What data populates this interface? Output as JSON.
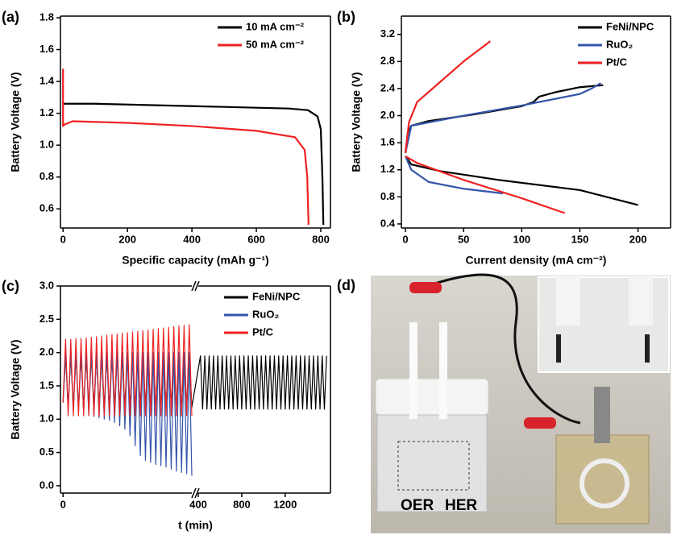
{
  "chart_data": [
    {
      "type": "line",
      "panel_label": "(a)",
      "xlabel": "Specific capacity (mAh g⁻¹)",
      "ylabel": "Battery Voltage (V)",
      "xlim": [
        -8,
        830
      ],
      "ylim": [
        0.48,
        1.81
      ],
      "xticks": [
        0,
        200,
        400,
        600,
        800
      ],
      "yticks": [
        0.6,
        0.8,
        {
          "value": 1.0,
          "label": "1.0"
        },
        1.2,
        1.4,
        1.6,
        1.8
      ],
      "legend": "upper right",
      "series": [
        {
          "name": "10 mA cm⁻²",
          "color": "#000000",
          "x": [
            0,
            100,
            300,
            500,
            700,
            760,
            790,
            800,
            805,
            808
          ],
          "values": [
            1.26,
            1.26,
            1.25,
            1.24,
            1.23,
            1.22,
            1.18,
            1.1,
            0.8,
            0.5
          ]
        },
        {
          "name": "50 mA cm⁻²",
          "color": "#ee2222",
          "x": [
            0,
            0,
            5,
            30,
            200,
            400,
            600,
            720,
            750,
            758,
            762
          ],
          "values": [
            1.48,
            1.12,
            1.13,
            1.15,
            1.14,
            1.12,
            1.09,
            1.05,
            0.97,
            0.8,
            0.5
          ]
        }
      ]
    },
    {
      "type": "line",
      "panel_label": "(b)",
      "xlabel": "Current density (mA cm⁻²)",
      "ylabel": "Battery Voltage (V)",
      "xlim": [
        -3.5,
        228
      ],
      "ylim": [
        0.34,
        3.47
      ],
      "xticks": [
        0,
        50,
        100,
        150,
        200
      ],
      "yticks": [
        0.4,
        0.8,
        1.2,
        1.6,
        {
          "value": 2.0,
          "label": "2.0"
        },
        2.4,
        2.8,
        3.2
      ],
      "legend": "upper right",
      "series": [
        {
          "name": "FeNi/NPC",
          "color": "#000000",
          "x": [
            0,
            2,
            5,
            20,
            60,
            100,
            110,
            115,
            130,
            150,
            170,
            null,
            0,
            5,
            30,
            80,
            150,
            200
          ],
          "values": [
            1.45,
            1.75,
            1.85,
            1.92,
            2.02,
            2.14,
            2.2,
            2.28,
            2.35,
            2.42,
            2.45,
            null,
            1.4,
            1.28,
            1.18,
            1.05,
            0.9,
            0.68
          ]
        },
        {
          "name": "RuO₂",
          "color": "#3355aa",
          "x": [
            0,
            5,
            50,
            100,
            150,
            160,
            168,
            null,
            0,
            5,
            20,
            50,
            84
          ],
          "values": [
            1.45,
            1.85,
            2.0,
            2.15,
            2.32,
            2.4,
            2.48,
            null,
            1.4,
            1.2,
            1.02,
            0.92,
            0.85
          ]
        },
        {
          "name": "Pt/C",
          "color": "#ee2222",
          "x": [
            0,
            3,
            10,
            30,
            50,
            73,
            null,
            0,
            10,
            50,
            100,
            137
          ],
          "values": [
            1.45,
            1.9,
            2.2,
            2.5,
            2.8,
            3.1,
            null,
            1.4,
            1.3,
            1.05,
            0.78,
            0.56
          ]
        }
      ]
    },
    {
      "type": "line",
      "panel_label": "(c)",
      "xlabel": "t (min)",
      "ylabel": "Battery Voltage (V)",
      "xsegments": [
        [
          -8,
          400
        ],
        [
          400,
          1616
        ]
      ],
      "ylim": [
        -0.11,
        3.0
      ],
      "xticks": [
        0,
        400,
        800,
        1200
      ],
      "yticks": [
        {
          "value": 0,
          "label": "0.0"
        },
        0.5,
        {
          "value": 1,
          "label": "1.0"
        },
        1.5,
        {
          "value": 2,
          "label": "2.0"
        },
        2.5,
        {
          "value": 3,
          "label": "3.0"
        }
      ],
      "legend": "upper right",
      "series": [
        {
          "name": "FeNi/NPC",
          "color": "#000000",
          "x": [
            0,
            8,
            16,
            24,
            32,
            40,
            48,
            56,
            64,
            72,
            80,
            88,
            96,
            104,
            112,
            120,
            128,
            136,
            144,
            152,
            160,
            168,
            176,
            184,
            192,
            200,
            208,
            216,
            224,
            232,
            240,
            248,
            256,
            264,
            272,
            280,
            288,
            296,
            304,
            312,
            320,
            328,
            336,
            344,
            352,
            360,
            368,
            376,
            384,
            392,
            400,
            420,
            440,
            460,
            480,
            500,
            520,
            540,
            560,
            580,
            600,
            620,
            640,
            660,
            680,
            700,
            720,
            740,
            760,
            780,
            800,
            820,
            840,
            860,
            880,
            900,
            920,
            940,
            960,
            980,
            1000,
            1020,
            1040,
            1060,
            1080,
            1100,
            1120,
            1140,
            1160,
            1180,
            1200,
            1220,
            1240,
            1260,
            1280,
            1300,
            1320,
            1340,
            1360,
            1380,
            1400,
            1420,
            1440,
            1460,
            1480,
            1500,
            1520,
            1540,
            1560,
            1580
          ],
          "values": [
            1.25,
            1.95,
            1.18,
            1.95,
            1.18,
            1.95,
            1.18,
            1.95,
            1.18,
            1.95,
            1.18,
            1.95,
            1.18,
            1.95,
            1.18,
            1.95,
            1.18,
            1.95,
            1.18,
            1.95,
            1.18,
            1.95,
            1.18,
            1.95,
            1.18,
            1.95,
            1.18,
            1.95,
            1.18,
            1.95,
            1.18,
            1.95,
            1.18,
            1.95,
            1.18,
            1.95,
            1.18,
            1.95,
            1.18,
            1.95,
            1.18,
            1.95,
            1.18,
            1.95,
            1.18,
            1.95,
            1.18,
            1.95,
            1.18,
            1.95,
            1.18,
            1.95,
            1.15,
            1.95,
            1.15,
            1.95,
            1.15,
            1.95,
            1.15,
            1.95,
            1.15,
            1.95,
            1.15,
            1.95,
            1.15,
            1.95,
            1.15,
            1.95,
            1.15,
            1.95,
            1.15,
            1.95,
            1.15,
            1.95,
            1.15,
            1.95,
            1.15,
            1.95,
            1.15,
            1.95,
            1.15,
            1.95,
            1.15,
            1.95,
            1.15,
            1.95,
            1.15,
            1.95,
            1.15,
            1.95,
            1.15,
            1.95,
            1.15,
            1.95,
            1.15,
            1.95,
            1.15,
            1.95,
            1.15,
            1.95,
            1.15,
            1.95,
            1.15,
            1.95,
            1.15,
            1.95,
            1.15,
            1.95,
            1.15,
            1.95
          ]
        },
        {
          "name": "RuO₂",
          "color": "#3355aa",
          "x": [
            0,
            8,
            16,
            24,
            32,
            40,
            48,
            56,
            64,
            72,
            80,
            88,
            96,
            104,
            112,
            120,
            128,
            136,
            144,
            152,
            160,
            168,
            176,
            184,
            192,
            200,
            208,
            216,
            224,
            232,
            240,
            248,
            256,
            264,
            272,
            280,
            288,
            296,
            304,
            312,
            320,
            328,
            336,
            344,
            352,
            360,
            368,
            376,
            384,
            392,
            400
          ],
          "values": [
            1.25,
            2.0,
            1.15,
            2.0,
            1.12,
            2.0,
            1.1,
            2.0,
            1.08,
            2.0,
            1.06,
            2.0,
            1.04,
            2.0,
            1.02,
            2.0,
            1.0,
            2.0,
            0.98,
            2.0,
            0.95,
            2.0,
            0.9,
            2.0,
            0.85,
            2.0,
            0.75,
            2.0,
            0.6,
            2.0,
            0.45,
            2.0,
            0.38,
            2.0,
            0.35,
            2.0,
            0.32,
            2.0,
            0.3,
            2.0,
            0.28,
            2.0,
            0.25,
            2.0,
            0.22,
            2.0,
            0.2,
            2.0,
            0.18,
            2.0,
            0.15
          ]
        },
        {
          "name": "Pt/C",
          "color": "#ee2222",
          "x": [
            0,
            8,
            16,
            24,
            32,
            40,
            48,
            56,
            64,
            72,
            80,
            88,
            96,
            104,
            112,
            120,
            128,
            136,
            144,
            152,
            160,
            168,
            176,
            184,
            192,
            200,
            208,
            216,
            224,
            232,
            240,
            248,
            256,
            264,
            272,
            280,
            288,
            296,
            304,
            312,
            320,
            328,
            336,
            344,
            352,
            360,
            368,
            376,
            384,
            392,
            400
          ],
          "values": [
            1.25,
            2.2,
            1.05,
            2.2,
            1.05,
            2.21,
            1.05,
            2.21,
            1.05,
            2.22,
            1.05,
            2.23,
            1.05,
            2.24,
            1.05,
            2.25,
            1.05,
            2.26,
            1.05,
            2.27,
            1.05,
            2.28,
            1.05,
            2.29,
            1.05,
            2.3,
            1.05,
            2.31,
            1.05,
            2.32,
            1.05,
            2.33,
            1.05,
            2.34,
            1.05,
            2.35,
            1.05,
            2.36,
            1.05,
            2.37,
            1.05,
            2.38,
            1.05,
            2.39,
            1.05,
            2.4,
            1.05,
            2.41,
            1.05,
            2.42,
            1.05
          ]
        }
      ]
    }
  ],
  "photo": {
    "panel_label": "(d)",
    "labels": [
      "OER",
      "HER"
    ]
  }
}
